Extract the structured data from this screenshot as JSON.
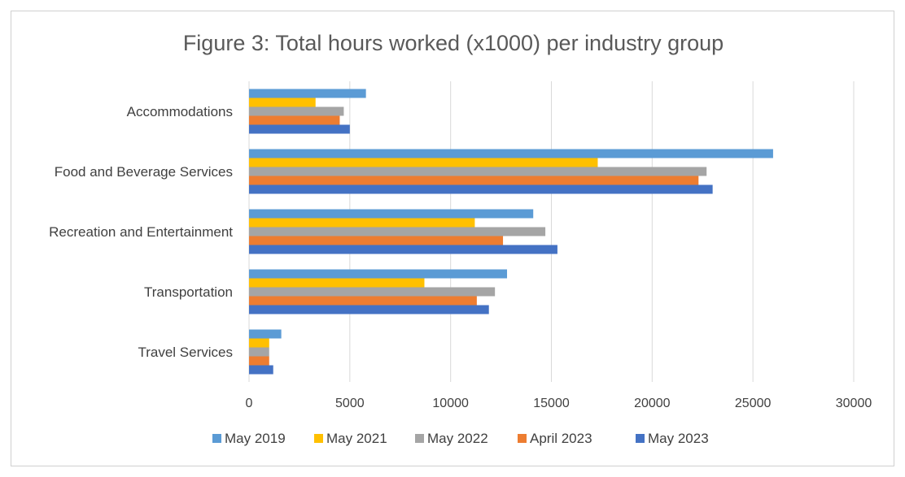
{
  "chart_data": {
    "type": "bar",
    "orientation": "horizontal",
    "title": "Figure 3:  Total hours worked (x1000) per industry group",
    "xlabel": "",
    "ylabel": "",
    "xlim": [
      0,
      30000
    ],
    "x_ticks": [
      0,
      5000,
      10000,
      15000,
      20000,
      25000,
      30000
    ],
    "grid": true,
    "legend_position": "bottom",
    "categories": [
      "Accommodations",
      "Food and Beverage Services",
      "Recreation and Entertainment",
      "Transportation",
      "Travel Services"
    ],
    "series": [
      {
        "name": "May 2019",
        "color": "#5B9BD5",
        "values": [
          5800,
          26000,
          14100,
          12800,
          1600
        ]
      },
      {
        "name": "May 2021",
        "color": "#FFC000",
        "values": [
          3300,
          17300,
          11200,
          8700,
          1000
        ]
      },
      {
        "name": "May 2022",
        "color": "#A5A5A5",
        "values": [
          4700,
          22700,
          14700,
          12200,
          1000
        ]
      },
      {
        "name": "April 2023",
        "color": "#ED7D31",
        "values": [
          4500,
          22300,
          12600,
          11300,
          1000
        ]
      },
      {
        "name": "May 2023",
        "color": "#4472C4",
        "values": [
          5000,
          23000,
          15300,
          11900,
          1200
        ]
      }
    ]
  }
}
